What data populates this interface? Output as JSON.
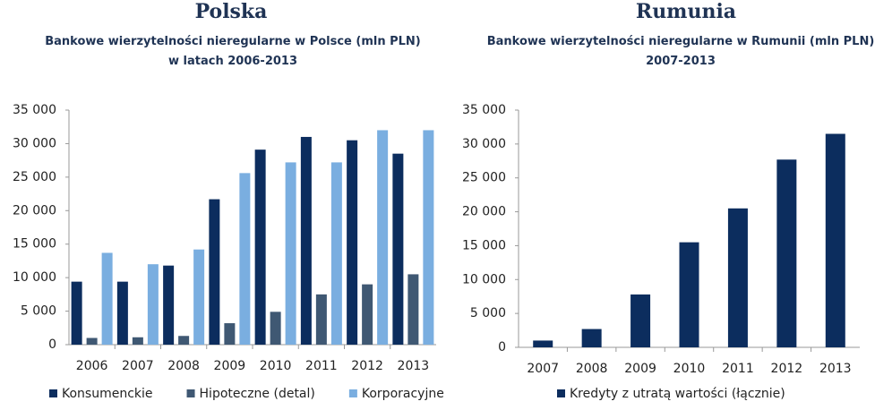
{
  "chart_data": [
    {
      "type": "bar",
      "title": "Polska",
      "subtitle": "Bankowe wierzytelności nieregularne w Polsce (mln PLN) w latach 2006-2013",
      "categories": [
        "2006",
        "2007",
        "2008",
        "2009",
        "2010",
        "2011",
        "2012",
        "2013"
      ],
      "series": [
        {
          "name": "Konsumenckie",
          "color": "#0c2d5e",
          "values": [
            9400,
            9400,
            11800,
            21700,
            29100,
            31000,
            30500,
            28500
          ]
        },
        {
          "name": "Hipoteczne (detal)",
          "color": "#3f5873",
          "values": [
            1000,
            1100,
            1300,
            3200,
            4900,
            7500,
            9000,
            10500
          ]
        },
        {
          "name": "Korporacyjne",
          "color": "#7aaee0",
          "values": [
            13700,
            12000,
            14200,
            25600,
            27200,
            27200,
            32000,
            32000
          ]
        }
      ],
      "ylim": [
        0,
        35000
      ],
      "yticks": [
        0,
        {
          "value": 5000,
          "label": "5 000"
        },
        {
          "value": 10000,
          "label": "10 000"
        },
        {
          "value": 15000,
          "label": "15 000"
        },
        {
          "value": 20000,
          "label": "20 000"
        },
        {
          "value": 25000,
          "label": "25 000"
        },
        {
          "value": 30000,
          "label": "30 000"
        },
        {
          "value": 35000,
          "label": "35 000"
        }
      ],
      "grid": false,
      "legend": "bottom"
    },
    {
      "type": "bar",
      "title": "Rumunia",
      "subtitle": "Bankowe wierzytelności nieregularne w Rumunii (mln PLN) 2007-2013",
      "categories": [
        "2007",
        "2008",
        "2009",
        "2010",
        "2011",
        "2012",
        "2013"
      ],
      "series": [
        {
          "name": "Kredyty z utratą wartości (łącznie)",
          "color": "#0c2d5e",
          "values": [
            1000,
            2700,
            7800,
            15500,
            20500,
            27700,
            31500
          ]
        }
      ],
      "ylim": [
        0,
        35000
      ],
      "yticks": [
        0,
        {
          "value": 5000,
          "label": "5 000"
        },
        {
          "value": 10000,
          "label": "10 000"
        },
        {
          "value": 15000,
          "label": "15 000"
        },
        {
          "value": 20000,
          "label": "20 000"
        },
        {
          "value": 25000,
          "label": "25 000"
        },
        {
          "value": 30000,
          "label": "30 000"
        },
        {
          "value": 35000,
          "label": "35 000"
        }
      ],
      "grid": false,
      "legend": "bottom"
    }
  ]
}
